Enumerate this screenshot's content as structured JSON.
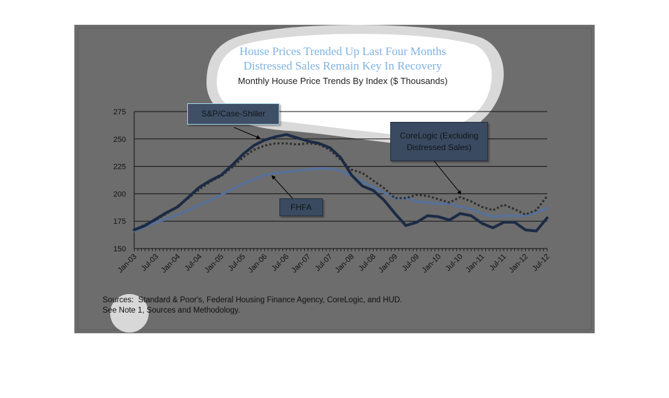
{
  "chart_data": {
    "type": "line",
    "title": [
      "House Prices Trended Up Last Four Months",
      "Distressed Sales Remain Key In Recovery"
    ],
    "subtitle": "Monthly House Price Trends By Index ($ Thousands)",
    "categories": [
      "Jan-03",
      null,
      "Jul-03",
      null,
      "Jan-04",
      null,
      "Jul-04",
      null,
      "Jan-05",
      null,
      "Jul-05",
      null,
      "Jan-06",
      null,
      "Jul-06",
      null,
      "Jan-07",
      null,
      "Jul-07",
      null,
      "Jan-08",
      null,
      "Jul-08",
      null,
      "Jan-09",
      null,
      "Jul-09",
      null,
      "Jan-10",
      null,
      "Jul-10",
      null,
      "Jan-11",
      null,
      "Jul-11",
      null,
      "Jan-12",
      null,
      "Jul-12"
    ],
    "series": [
      {
        "name": "S&P/Case-Shiller",
        "color": "#1c2b45",
        "style": "solid",
        "values": [
          167,
          171,
          177,
          183,
          188,
          197,
          206,
          212,
          217,
          226,
          236,
          244,
          249,
          252,
          254,
          251,
          248,
          246,
          242,
          233,
          217,
          207,
          203,
          194,
          182,
          171,
          174,
          180,
          179,
          176,
          182,
          180,
          173,
          169,
          174,
          174,
          167,
          166,
          178
        ]
      },
      {
        "name": "FHFA",
        "color": "#56719a",
        "style": "solid",
        "values": [
          166,
          170,
          174,
          177,
          181,
          185,
          190,
          194,
          199,
          204,
          209,
          213,
          217,
          219,
          220,
          221,
          222,
          223,
          223,
          221,
          216,
          211,
          206,
          201,
          196,
          196,
          193,
          192,
          191,
          191,
          188,
          186,
          182,
          179,
          180,
          180,
          180,
          183,
          187
        ]
      },
      {
        "name": "CoreLogic (Excluding Distressed Sales)",
        "color": "#2e2e2e",
        "style": "dotted",
        "values": [
          167,
          172,
          176,
          182,
          189,
          196,
          204,
          211,
          216,
          224,
          233,
          240,
          244,
          246,
          246,
          245,
          246,
          245,
          240,
          231,
          222,
          219,
          212,
          205,
          196,
          196,
          199,
          198,
          195,
          192,
          197,
          193,
          188,
          185,
          190,
          186,
          181,
          185,
          198
        ]
      }
    ],
    "ylim": [
      150,
      275
    ],
    "yticks": [
      150,
      175,
      200,
      225,
      250,
      275
    ],
    "grid": true,
    "notes": [
      "Sources:  Standard & Poor's, Federal Housing Finance Agency, CoreLogic, and HUD.",
      "See Note 1, Sources and Methodology."
    ]
  }
}
